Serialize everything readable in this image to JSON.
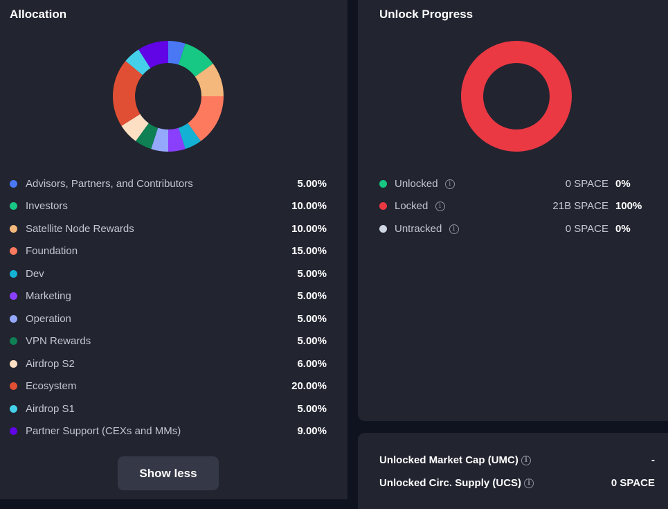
{
  "allocation": {
    "title": "Allocation",
    "items": [
      {
        "label": "Advisors, Partners, and Contributors",
        "value": "5.00%",
        "pct": 5,
        "color": "#4a78f5"
      },
      {
        "label": "Investors",
        "value": "10.00%",
        "pct": 10,
        "color": "#17c784"
      },
      {
        "label": "Satellite Node Rewards",
        "value": "10.00%",
        "pct": 10,
        "color": "#f4b87c"
      },
      {
        "label": "Foundation",
        "value": "15.00%",
        "pct": 15,
        "color": "#fe7a5f"
      },
      {
        "label": "Dev",
        "value": "5.00%",
        "pct": 5,
        "color": "#13b2d4"
      },
      {
        "label": "Marketing",
        "value": "5.00%",
        "pct": 5,
        "color": "#8a3ffc"
      },
      {
        "label": "Operation",
        "value": "5.00%",
        "pct": 5,
        "color": "#94a8fc"
      },
      {
        "label": "VPN Rewards",
        "value": "5.00%",
        "pct": 5,
        "color": "#0e8053"
      },
      {
        "label": "Airdrop S2",
        "value": "6.00%",
        "pct": 6,
        "color": "#fde0c4"
      },
      {
        "label": "Ecosystem",
        "value": "20.00%",
        "pct": 20,
        "color": "#e04f33"
      },
      {
        "label": "Airdrop S1",
        "value": "5.00%",
        "pct": 5,
        "color": "#45d0ea"
      },
      {
        "label": "Partner Support (CEXs and MMs)",
        "value": "9.00%",
        "pct": 9,
        "color": "#6104e6"
      }
    ],
    "show_less_label": "Show less"
  },
  "unlock": {
    "title": "Unlock Progress",
    "items": [
      {
        "label": "Unlocked",
        "amount": "0 SPACE",
        "value": "0%",
        "pct": 0,
        "color": "#17c784"
      },
      {
        "label": "Locked",
        "amount": "21B SPACE",
        "value": "100%",
        "pct": 100,
        "color": "#ea3943"
      },
      {
        "label": "Untracked",
        "amount": "0 SPACE",
        "value": "0%",
        "pct": 0,
        "color": "#cfd6e4"
      }
    ]
  },
  "stats": [
    {
      "label": "Unlocked Market Cap (UMC)",
      "value": "-"
    },
    {
      "label": "Unlocked Circ. Supply (UCS)",
      "value": "0 SPACE"
    }
  ],
  "info_glyph": "i"
}
